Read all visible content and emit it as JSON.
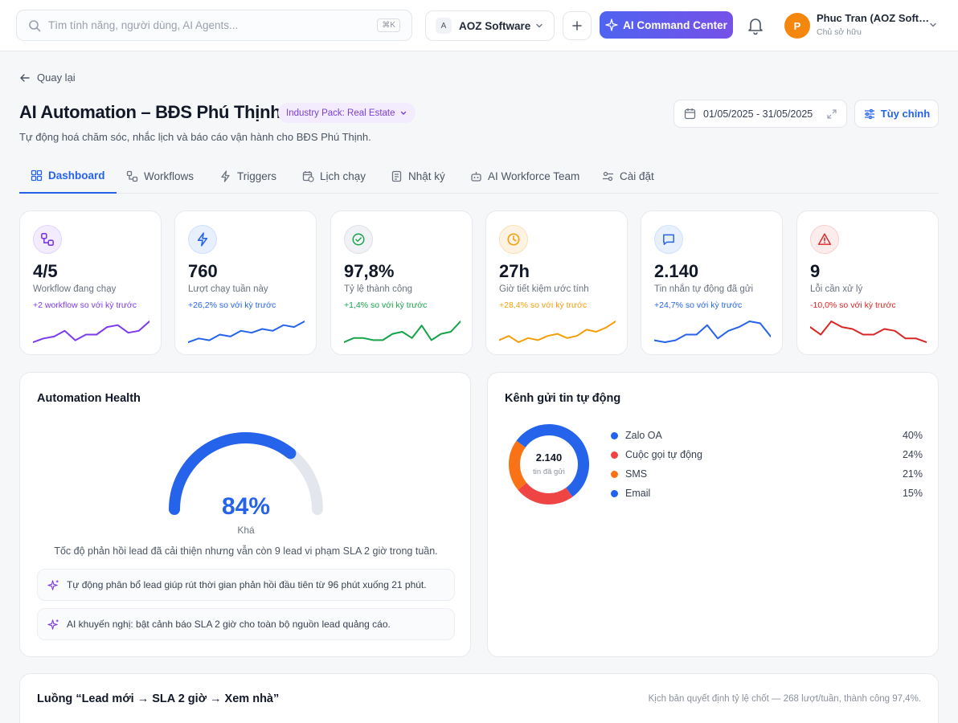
{
  "topbar": {
    "search_placeholder": "Tìm tính năng, người dùng, AI Agents...",
    "search_shortcut": "⌘K",
    "org_badge": "A",
    "org_name": "AOZ Software",
    "ai_command_label": "AI Command Center",
    "user_initial": "P",
    "user_name": "Phuc Tran (AOZ Soft…",
    "user_role": "Chủ sở hữu"
  },
  "header": {
    "back_label": "Quay lại",
    "title": "AI Automation – BĐS Phú Thịnh",
    "industry_pack": "Industry Pack: Real Estate",
    "subtitle": "Tự động hoá chăm sóc, nhắc lịch và báo cáo vận hành cho BĐS Phú Thịnh.",
    "date_range": "01/05/2025 - 31/05/2025",
    "customize_label": "Tùy chỉnh"
  },
  "tabs": [
    "Dashboard",
    "Workflows",
    "Triggers",
    "Lịch chạy",
    "Nhật ký",
    "AI Workforce Team",
    "Cài đặt"
  ],
  "stats": [
    {
      "value": "4/5",
      "label": "Workflow đang chạy",
      "change": "+2 workflow so với kỳ trước",
      "color": "#7c3aed",
      "bg": "#f3ecff",
      "icon": "workflow-icon",
      "spark": [
        3,
        5,
        6,
        9,
        4,
        7,
        7,
        11,
        12,
        8,
        9,
        14
      ]
    },
    {
      "value": "760",
      "label": "Lượt chạy tuần này",
      "change": "+26,2% so với kỳ trước",
      "color": "#2563eb",
      "bg": "#e8f0fe",
      "icon": "bolt-icon",
      "spark": [
        3,
        5,
        4,
        7,
        6,
        9,
        8,
        10,
        9,
        12,
        11,
        14
      ]
    },
    {
      "value": "97,8%",
      "label": "Tỷ lệ thành công",
      "change": "+1,4% so với kỳ trước",
      "color": "#16a34a",
      "bg": "#f0f2f5",
      "icon": "check-circle-icon",
      "spark": [
        4,
        6,
        6,
        5,
        5,
        8,
        9,
        6,
        12,
        5,
        8,
        9,
        14
      ]
    },
    {
      "value": "27h",
      "label": "Giờ tiết kiệm ước tính",
      "change": "+28,4% so với kỳ trước",
      "color": "#f59e0b",
      "bg": "#fef3e2",
      "icon": "clock-icon",
      "spark": [
        5,
        7,
        4,
        6,
        5,
        7,
        8,
        6,
        7,
        10,
        9,
        11,
        14
      ]
    },
    {
      "value": "2.140",
      "label": "Tin nhắn tự động đã gửi",
      "change": "+24,7% so với kỳ trước",
      "color": "#2563eb",
      "bg": "#e8f0fe",
      "icon": "message-icon",
      "spark": [
        4,
        3,
        4,
        7,
        7,
        12,
        5,
        9,
        11,
        14,
        13,
        6
      ]
    },
    {
      "value": "9",
      "label": "Lỗi cần xử lý",
      "change": "-10,0% so với kỳ trước",
      "color": "#dc2626",
      "bg": "#fdecec",
      "icon": "alert-icon",
      "spark": [
        11,
        7,
        14,
        11,
        10,
        7,
        7,
        10,
        9,
        5,
        5,
        3
      ]
    }
  ],
  "health": {
    "title": "Automation Health",
    "score": 84,
    "score_label": "84%",
    "rating": "Khá",
    "description": "Tốc độ phản hồi lead đã cải thiện nhưng vẫn còn 9 lead vi phạm SLA 2 giờ trong tuần.",
    "insights": [
      "Tự động phân bổ lead giúp rút thời gian phản hồi đầu tiên từ 96 phút xuống 21 phút.",
      "AI khuyến nghị: bật cảnh báo SLA 2 giờ cho toàn bộ nguồn lead quảng cáo."
    ]
  },
  "channels": {
    "title": "Kênh gửi tin tự động",
    "total": "2.140",
    "total_label": "tin đã gửi",
    "items": [
      {
        "name": "Zalo OA",
        "pct": "40%",
        "value": 40,
        "color": "#2563eb"
      },
      {
        "name": "Cuộc gọi tự động",
        "pct": "24%",
        "value": 24,
        "color": "#ef4444"
      },
      {
        "name": "SMS",
        "pct": "21%",
        "value": 21,
        "color": "#f97316"
      },
      {
        "name": "Email",
        "pct": "15%",
        "value": 15,
        "color": "#2563eb"
      }
    ]
  },
  "flow": {
    "title": "Luồng “Lead mới → SLA 2 giờ → Xem nhà”",
    "note": "Kịch bản quyết định tỷ lệ chốt — 268 lượt/tuần, thành công 97,4%."
  }
}
